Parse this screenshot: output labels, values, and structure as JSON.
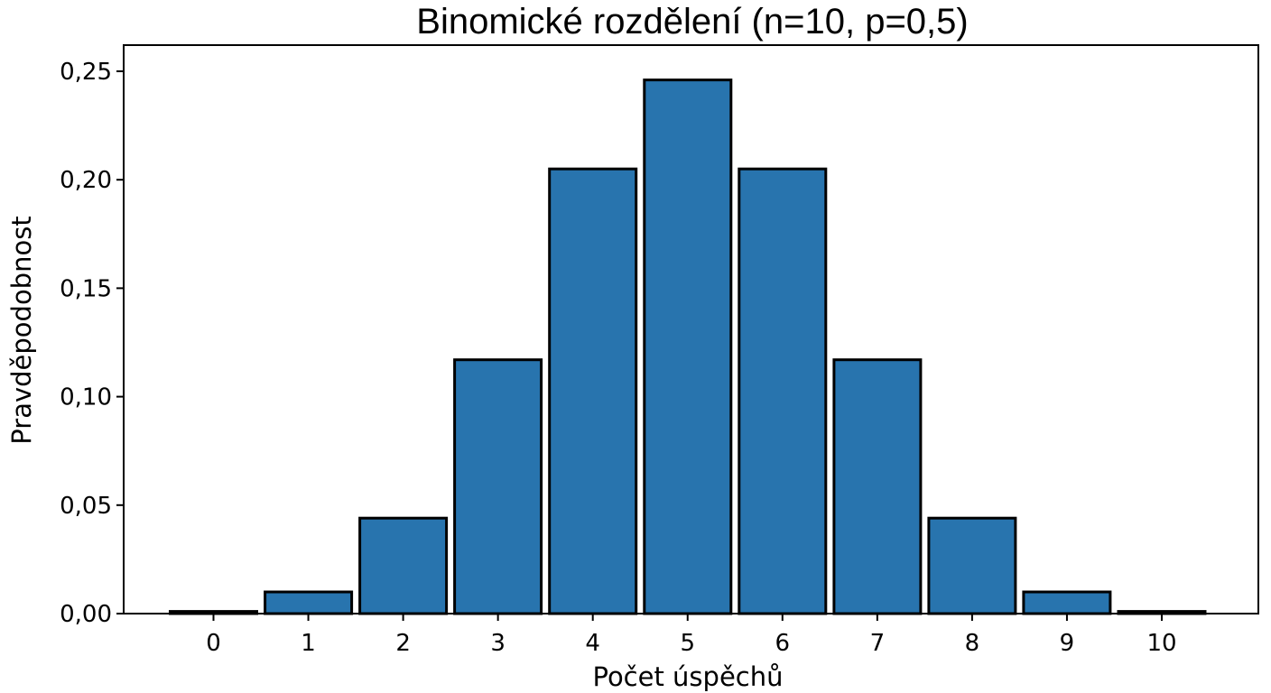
{
  "chart_data": {
    "type": "bar",
    "title": "Binomické rozdělení (n=10, p=0,5)",
    "xlabel": "Počet úspěchů",
    "ylabel": "Pravděpodobnost",
    "categories": [
      "0",
      "1",
      "2",
      "3",
      "4",
      "5",
      "6",
      "7",
      "8",
      "9",
      "10"
    ],
    "values": [
      0.001,
      0.01,
      0.044,
      0.117,
      0.205,
      0.246,
      0.205,
      0.117,
      0.044,
      0.01,
      0.001
    ],
    "ylim": [
      0,
      0.26
    ],
    "yticks": [
      0,
      0.05,
      0.1,
      0.15,
      0.2,
      0.25
    ],
    "ytick_labels": [
      "0,00",
      "0,05",
      "0,10",
      "0,15",
      "0,20",
      "0,25"
    ],
    "bar_color": "#2874ae",
    "edge_color": "#000000",
    "grid": false,
    "legend": "none"
  }
}
